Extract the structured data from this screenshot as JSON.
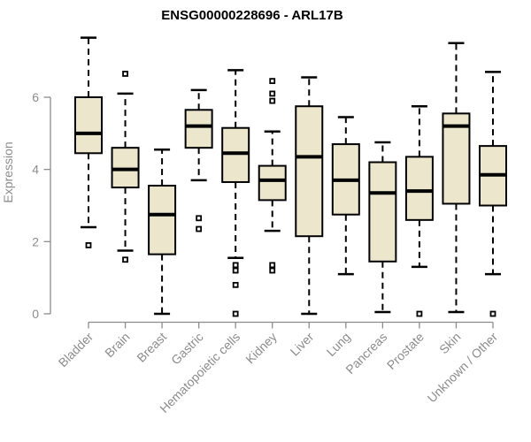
{
  "chart_data": {
    "type": "boxplot",
    "title": "ENSG00000228696 - ARL17B",
    "ylabel": "Expression",
    "xlabel": "",
    "yticks": [
      0,
      2,
      4,
      6
    ],
    "ylim": [
      0,
      7.9
    ],
    "grid": false,
    "legend": "none",
    "colors": {
      "box_fill": "#ece6cd",
      "box_stroke": "#000000",
      "median_stroke": "#000000",
      "whisker_stroke": "#000000",
      "outlier_stroke": "#000000",
      "axis_line": "#8c8c8c",
      "axis_text": "#8c8c8c",
      "title_text": "#000000"
    },
    "categories": [
      "Bladder",
      "Brain",
      "Breast",
      "Gastric",
      "Hematopoietic cells",
      "Kidney",
      "Liver",
      "Lung",
      "Pancreas",
      "Prostate",
      "Skin",
      "Unknown / Other"
    ],
    "series": [
      {
        "category": "Bladder",
        "whisker_low": 2.4,
        "q1": 4.45,
        "median": 5.0,
        "q3": 6.0,
        "whisker_high": 7.65,
        "outliers": [
          1.9
        ]
      },
      {
        "category": "Brain",
        "whisker_low": 1.75,
        "q1": 3.5,
        "median": 4.0,
        "q3": 4.6,
        "whisker_high": 6.1,
        "outliers": [
          6.65,
          1.5
        ]
      },
      {
        "category": "Breast",
        "whisker_low": 0.0,
        "q1": 1.65,
        "median": 2.75,
        "q3": 3.55,
        "whisker_high": 4.55,
        "outliers": []
      },
      {
        "category": "Gastric",
        "whisker_low": 3.7,
        "q1": 4.6,
        "median": 5.2,
        "q3": 5.65,
        "whisker_high": 6.2,
        "outliers": [
          2.65,
          2.35
        ]
      },
      {
        "category": "Hematopoietic cells",
        "whisker_low": 1.55,
        "q1": 3.65,
        "median": 4.45,
        "q3": 5.15,
        "whisker_high": 6.75,
        "outliers": [
          1.35,
          1.2,
          0.8,
          0.0
        ]
      },
      {
        "category": "Kidney",
        "whisker_low": 2.3,
        "q1": 3.15,
        "median": 3.7,
        "q3": 4.1,
        "whisker_high": 5.05,
        "outliers": [
          6.45,
          6.1,
          5.9,
          1.35,
          1.2
        ]
      },
      {
        "category": "Liver",
        "whisker_low": 0.0,
        "q1": 2.15,
        "median": 4.35,
        "q3": 5.75,
        "whisker_high": 6.55,
        "outliers": []
      },
      {
        "category": "Lung",
        "whisker_low": 1.1,
        "q1": 2.75,
        "median": 3.7,
        "q3": 4.7,
        "whisker_high": 5.45,
        "outliers": []
      },
      {
        "category": "Pancreas",
        "whisker_low": 0.05,
        "q1": 1.45,
        "median": 3.35,
        "q3": 4.2,
        "whisker_high": 4.75,
        "outliers": []
      },
      {
        "category": "Prostate",
        "whisker_low": 1.3,
        "q1": 2.6,
        "median": 3.4,
        "q3": 4.35,
        "whisker_high": 5.75,
        "outliers": [
          0.0
        ]
      },
      {
        "category": "Skin",
        "whisker_low": 0.05,
        "q1": 3.05,
        "median": 5.2,
        "q3": 5.55,
        "whisker_high": 7.5,
        "outliers": []
      },
      {
        "category": "Unknown / Other",
        "whisker_low": 1.1,
        "q1": 3.0,
        "median": 3.85,
        "q3": 4.65,
        "whisker_high": 6.7,
        "outliers": [
          0.0
        ]
      }
    ]
  }
}
